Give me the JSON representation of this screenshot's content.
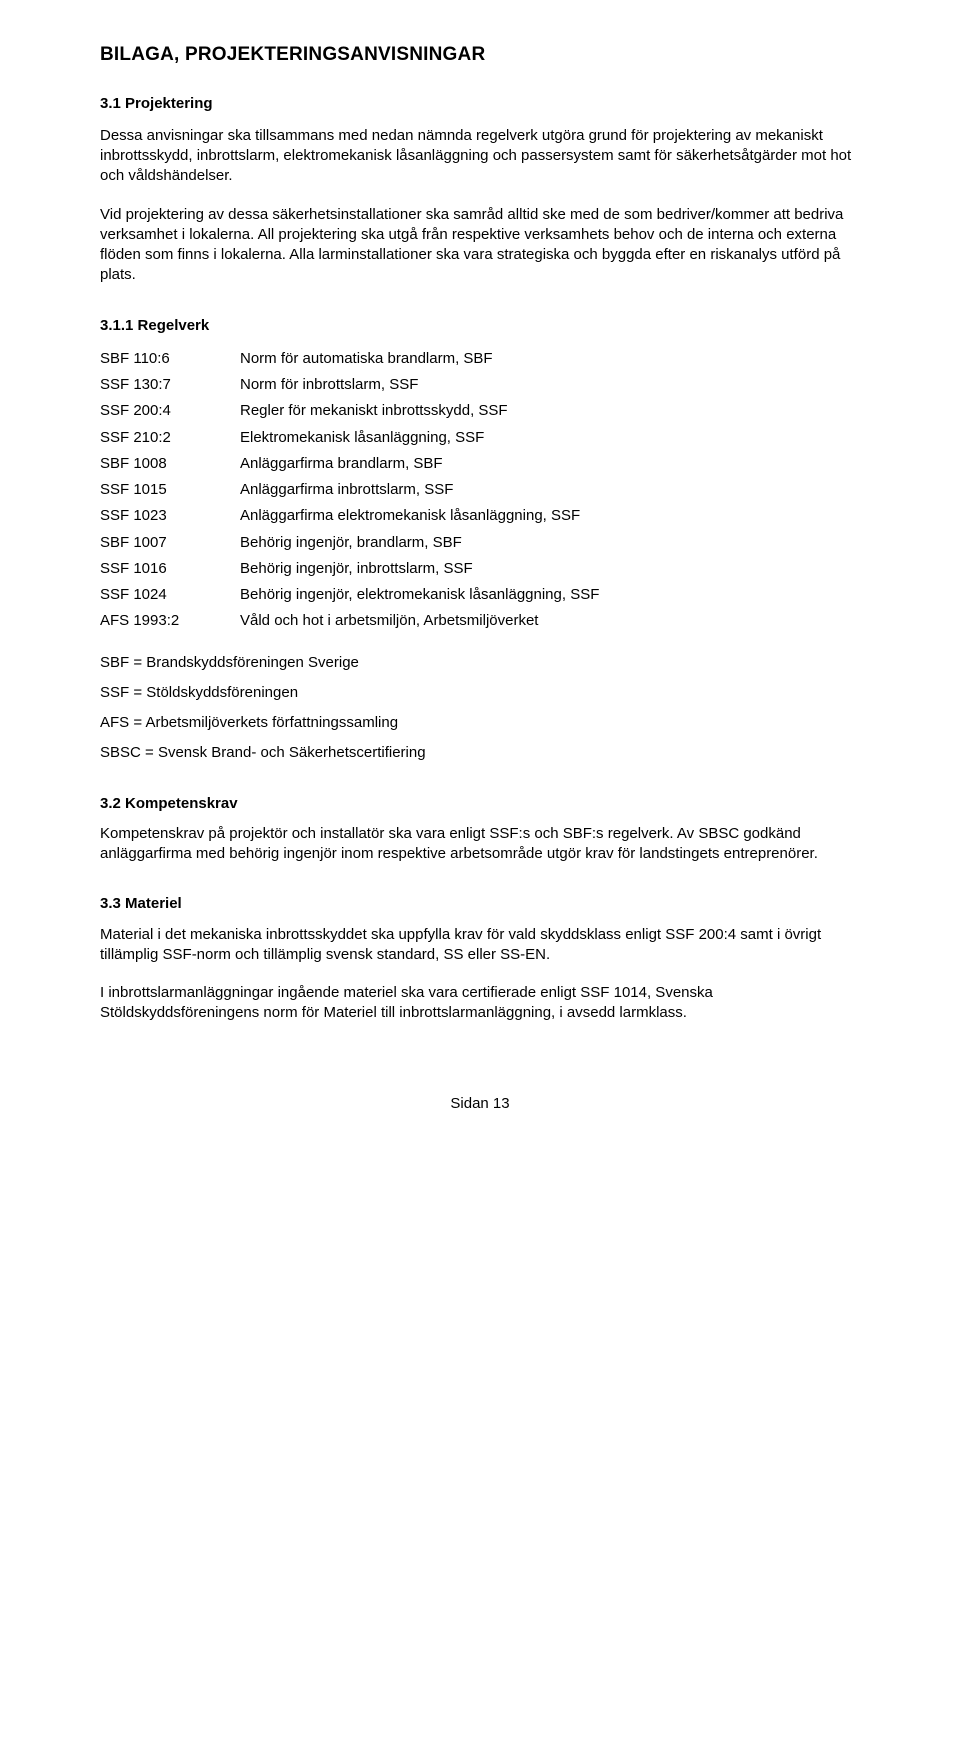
{
  "title": "BILAGA, PROJEKTERINGSANVISNINGAR",
  "s31": {
    "heading": "3.1 Projektering",
    "p1": "Dessa anvisningar ska tillsammans med nedan nämnda regelverk utgöra grund för projektering av mekaniskt inbrottsskydd, inbrottslarm, elektromekanisk låsanläggning och passersystem samt för säkerhetsåtgärder mot hot och våldshändelser.",
    "p2": "Vid projektering av dessa säkerhetsinstallationer ska samråd alltid ske med de som bedriver/kommer att bedriva verksamhet i lokalerna. All projektering ska utgå från respektive verksamhets behov och de interna och externa flöden som finns i lokalerna. Alla larminstallationer ska vara strategiska och byggda efter en riskanalys utförd på plats."
  },
  "s311": {
    "heading": "3.1.1 Regelverk",
    "rows": [
      {
        "code": "SBF 110:6",
        "desc": "Norm för automatiska brandlarm, SBF"
      },
      {
        "code": "SSF 130:7",
        "desc": "Norm för inbrottslarm, SSF"
      },
      {
        "code": "SSF 200:4",
        "desc": "Regler för mekaniskt inbrottsskydd, SSF"
      },
      {
        "code": "SSF 210:2",
        "desc": "Elektromekanisk låsanläggning, SSF"
      },
      {
        "code": "SBF 1008",
        "desc": "Anläggarfirma brandlarm, SBF"
      },
      {
        "code": "SSF 1015",
        "desc": "Anläggarfirma inbrottslarm, SSF"
      },
      {
        "code": "SSF 1023",
        "desc": "Anläggarfirma elektromekanisk låsanläggning, SSF"
      },
      {
        "code": "SBF 1007",
        "desc": "Behörig ingenjör, brandlarm, SBF"
      },
      {
        "code": "SSF 1016",
        "desc": "Behörig ingenjör, inbrottslarm, SSF"
      },
      {
        "code": "SSF 1024",
        "desc": "Behörig ingenjör, elektromekanisk låsanläggning, SSF"
      },
      {
        "code": "AFS 1993:2",
        "desc": "Våld och hot i arbetsmiljön, Arbetsmiljöverket"
      }
    ],
    "defs": [
      "SBF = Brandskyddsföreningen Sverige",
      "SSF = Stöldskyddsföreningen",
      "AFS = Arbetsmiljöverkets författningssamling",
      "SBSC = Svensk Brand- och Säkerhetscertifiering"
    ]
  },
  "s32": {
    "heading": "3.2 Kompetenskrav",
    "p1": "Kompetenskrav på projektör och installatör ska vara enligt SSF:s och SBF:s regelverk. Av SBSC godkänd anläggarfirma med behörig ingenjör inom respektive arbetsområde utgör krav för landstingets entreprenörer."
  },
  "s33": {
    "heading": "3.3 Materiel",
    "p1": "Material i det mekaniska inbrottsskyddet ska uppfylla krav för vald skyddsklass enligt SSF 200:4 samt i övrigt tillämplig SSF-norm och tillämplig svensk standard, SS eller SS-EN.",
    "p2": "I inbrottslarmanläggningar ingående materiel ska vara certifierade enligt SSF 1014, Svenska Stöldskyddsföreningens norm för Materiel till inbrottslarmanläggning, i avsedd larmklass."
  },
  "pagenum": "Sidan 13"
}
